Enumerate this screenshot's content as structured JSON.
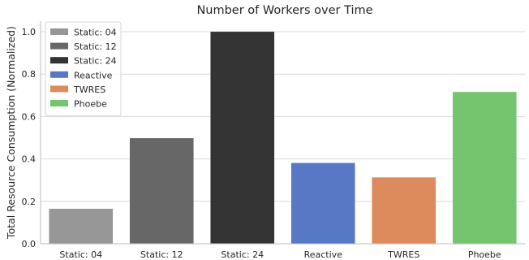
{
  "chart_data": {
    "type": "bar",
    "title": "Number of Workers over Time",
    "xlabel": "",
    "ylabel": "Total Resource Consumption (Normalized)",
    "categories": [
      "Static: 04",
      "Static: 12",
      "Static: 24",
      "Reactive",
      "TWRES",
      "Phoebe"
    ],
    "values": [
      0.165,
      0.498,
      1.0,
      0.381,
      0.313,
      0.716
    ],
    "colors": [
      "#979797",
      "#676767",
      "#333333",
      "#5779c5",
      "#dd8a5c",
      "#75c56f"
    ],
    "ylim": [
      0,
      1.05
    ],
    "yticks": [
      0.0,
      0.2,
      0.4,
      0.6,
      0.8,
      1.0
    ],
    "ytick_labels": [
      "0.0",
      "0.2",
      "0.4",
      "0.6",
      "0.8",
      "1.0"
    ],
    "grid": "horizontal",
    "legend_position": "top-left",
    "legend": [
      "Static: 04",
      "Static: 12",
      "Static: 24",
      "Reactive",
      "TWRES",
      "Phoebe"
    ]
  }
}
